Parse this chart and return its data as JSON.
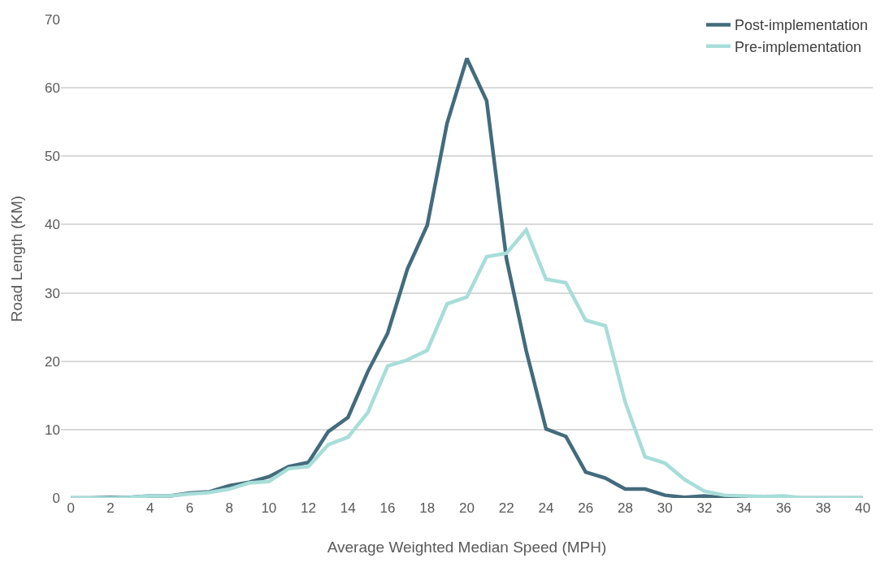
{
  "chart_data": {
    "type": "line",
    "xlabel": "Average Weighted Median Speed (MPH)",
    "ylabel": "Road Length (KM)",
    "x": [
      0,
      1,
      2,
      3,
      4,
      5,
      6,
      7,
      8,
      9,
      10,
      11,
      12,
      13,
      14,
      15,
      16,
      17,
      18,
      19,
      20,
      21,
      22,
      23,
      24,
      25,
      26,
      27,
      28,
      29,
      30,
      31,
      32,
      33,
      34,
      35,
      36,
      37,
      38,
      39,
      40
    ],
    "series": [
      {
        "name": "Post-implementation",
        "color": "#436b7c",
        "values": [
          0,
          0,
          0.1,
          0.1,
          0.3,
          0.3,
          0.7,
          0.9,
          1.8,
          2.3,
          3.1,
          4.6,
          5.2,
          9.7,
          11.8,
          18.5,
          24.1,
          33.5,
          39.9,
          54.8,
          64.3,
          58.1,
          35,
          21.5,
          10.1,
          9,
          3.8,
          2.9,
          1.3,
          1.3,
          0.4,
          0.1,
          0.3,
          0,
          0,
          0,
          0,
          0,
          0,
          0,
          0
        ]
      },
      {
        "name": "Pre-implementation",
        "color": "#a8ddd9",
        "values": [
          0,
          0,
          0,
          0.1,
          0.3,
          0.3,
          0.6,
          0.8,
          1.3,
          2.2,
          2.4,
          4.3,
          4.6,
          7.8,
          8.9,
          12.5,
          19.3,
          20.2,
          21.6,
          28.4,
          29.4,
          35.3,
          35.8,
          39.2,
          32,
          31.5,
          26,
          25.2,
          14,
          6,
          5.1,
          2.7,
          1,
          0.4,
          0.3,
          0.2,
          0.3,
          0,
          0,
          0,
          0
        ]
      }
    ],
    "xlim": [
      -0.5,
      40.5
    ],
    "xticks": [
      0,
      2,
      4,
      6,
      8,
      10,
      12,
      14,
      16,
      18,
      20,
      22,
      24,
      26,
      28,
      30,
      32,
      34,
      36,
      38,
      40
    ],
    "ylim": [
      0,
      70
    ],
    "yticks": [
      0,
      10,
      20,
      30,
      40,
      50,
      60,
      70
    ],
    "grid": "y",
    "legend": "top right",
    "marker": "none",
    "line_style": "solid"
  }
}
